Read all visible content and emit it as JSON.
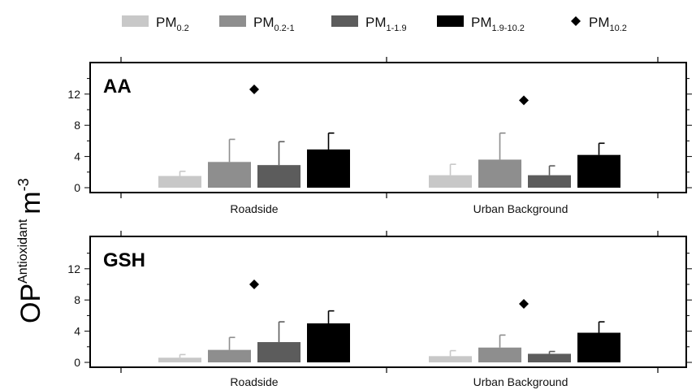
{
  "chart_data": {
    "type": "bar",
    "ylabel": {
      "main": "OP",
      "sub": "Antioxidant",
      "unit": "m",
      "sup": "-3"
    },
    "ylim": [
      0,
      15
    ],
    "yticks": [
      0,
      4,
      8,
      12
    ],
    "categories": [
      "Roadside",
      "Urban Background"
    ],
    "legend": {
      "placement": "top",
      "entries": [
        {
          "base": "PM",
          "sub": "0.2",
          "color": "#c8c8c8",
          "marker": "box"
        },
        {
          "base": "PM",
          "sub": "0.2-1",
          "color": "#8e8e8e",
          "marker": "box"
        },
        {
          "base": "PM",
          "sub": "1-1.9",
          "color": "#5c5c5c",
          "marker": "box"
        },
        {
          "base": "PM",
          "sub": "1.9-10.2",
          "color": "#000000",
          "marker": "box"
        },
        {
          "base": "PM",
          "sub": "10.2",
          "color": "#000000",
          "marker": "diamond"
        }
      ]
    },
    "panels": [
      {
        "title": "AA",
        "series": [
          {
            "name": "PM0.2",
            "values": [
              1.5,
              1.6
            ],
            "errors": [
              0.6,
              1.4
            ]
          },
          {
            "name": "PM0.2-1",
            "values": [
              3.3,
              3.6
            ],
            "errors": [
              2.9,
              3.4
            ]
          },
          {
            "name": "PM1-1.9",
            "values": [
              2.9,
              1.6
            ],
            "errors": [
              3.0,
              1.2
            ]
          },
          {
            "name": "PM1.9-10.2",
            "values": [
              4.9,
              4.2
            ],
            "errors": [
              2.1,
              1.5
            ]
          }
        ],
        "points": {
          "name": "PM10.2",
          "values": [
            12.6,
            11.2
          ]
        }
      },
      {
        "title": "GSH",
        "series": [
          {
            "name": "PM0.2",
            "values": [
              0.6,
              0.8
            ],
            "errors": [
              0.4,
              0.7
            ]
          },
          {
            "name": "PM0.2-1",
            "values": [
              1.6,
              1.9
            ],
            "errors": [
              1.6,
              1.6
            ]
          },
          {
            "name": "PM1-1.9",
            "values": [
              2.6,
              1.1
            ],
            "errors": [
              2.6,
              0.3
            ]
          },
          {
            "name": "PM1.9-10.2",
            "values": [
              5.0,
              3.8
            ],
            "errors": [
              1.6,
              1.4
            ]
          }
        ],
        "points": {
          "name": "PM10.2",
          "values": [
            10.0,
            7.5
          ]
        }
      }
    ]
  }
}
